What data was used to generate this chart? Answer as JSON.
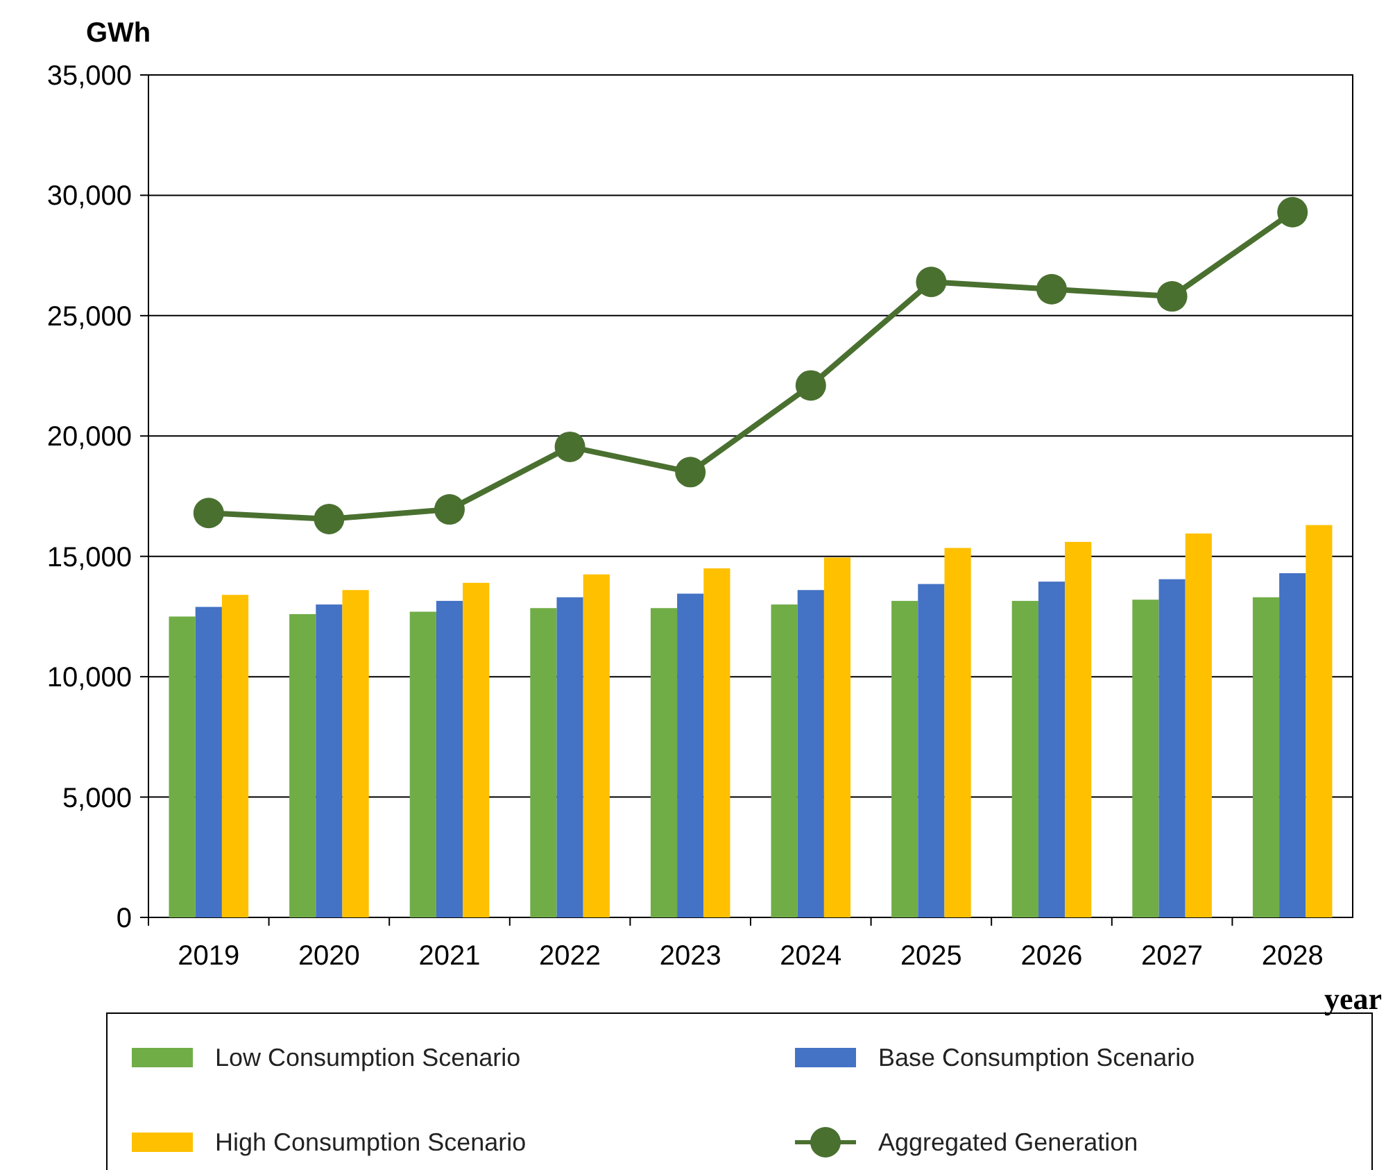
{
  "chart_data": {
    "type": "bar",
    "ylabel": "GWh",
    "xlabel": "year",
    "categories": [
      "2019",
      "2020",
      "2021",
      "2022",
      "2023",
      "2024",
      "2025",
      "2026",
      "2027",
      "2028"
    ],
    "series": [
      {
        "name": "Low Consumption Scenario",
        "color": "#70ad47",
        "values": [
          12500,
          12600,
          12700,
          12850,
          12850,
          13000,
          13150,
          13150,
          13200,
          13300
        ]
      },
      {
        "name": "Base Consumption Scenario",
        "color": "#4472c4",
        "values": [
          12900,
          13000,
          13150,
          13300,
          13450,
          13600,
          13850,
          13950,
          14050,
          14300
        ]
      },
      {
        "name": "High Consumption Scenario",
        "color": "#ffc000",
        "values": [
          13400,
          13600,
          13900,
          14250,
          14500,
          14950,
          15350,
          15600,
          15950,
          16300
        ]
      },
      {
        "name": "Aggregated Generation",
        "color": "#4a7030",
        "type": "line",
        "marker": "circle",
        "values": [
          16800,
          16550,
          16950,
          19550,
          18500,
          22100,
          26400,
          26100,
          25800,
          29300
        ]
      }
    ],
    "ylim": [
      0,
      35000
    ],
    "yticks": [
      {
        "value": 0,
        "label": "0"
      },
      {
        "value": 5000,
        "label": "5,000"
      },
      {
        "value": 10000,
        "label": "10,000"
      },
      {
        "value": 15000,
        "label": "15,000"
      },
      {
        "value": 20000,
        "label": "20,000"
      },
      {
        "value": 25000,
        "label": "25,000"
      },
      {
        "value": 30000,
        "label": "30,000"
      },
      {
        "value": 35000,
        "label": "35,000"
      }
    ],
    "grid": "y",
    "legend": "bottom"
  }
}
